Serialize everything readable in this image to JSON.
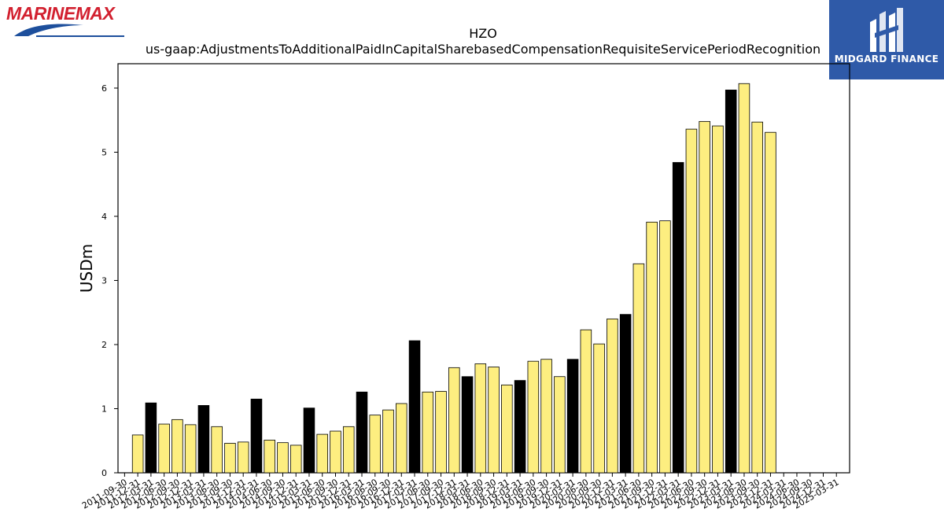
{
  "logos": {
    "left": {
      "text": "MARINEMAX",
      "icon": "marinemax-logo-icon"
    },
    "right": {
      "text": "MIDGARD FINANCE",
      "icon": "midgard-logo-icon",
      "background": "#2f5aa8"
    }
  },
  "chart_data": {
    "type": "bar",
    "title": "HZO",
    "subtitle": "us-gaap:AdjustmentsToAdditionalPaidInCapitalSharebasedCompensationRequisiteServicePeriodRecognition",
    "ylabel": "USDm",
    "xlabel": "",
    "ylim": [
      0,
      6.38
    ],
    "yticks": [
      0,
      1,
      2,
      3,
      4,
      5,
      6
    ],
    "grid": false,
    "colors": {
      "quarter": "#fdee80",
      "fiscal_year_end": "#000000",
      "edge": "#000000"
    },
    "categories": [
      "2011-09-30",
      "2011-12-31",
      "2012-03-31",
      "2012-06-30",
      "2012-09-30",
      "2012-12-31",
      "2013-03-31",
      "2013-06-30",
      "2013-09-30",
      "2013-12-31",
      "2014-03-31",
      "2014-06-30",
      "2014-09-30",
      "2014-12-31",
      "2015-03-31",
      "2015-06-30",
      "2015-09-30",
      "2015-12-31",
      "2016-03-31",
      "2016-06-30",
      "2016-09-30",
      "2016-12-31",
      "2017-03-31",
      "2017-06-30",
      "2017-09-30",
      "2017-12-31",
      "2018-03-31",
      "2018-06-30",
      "2018-09-30",
      "2018-12-31",
      "2019-03-31",
      "2019-06-30",
      "2019-09-30",
      "2019-12-31",
      "2020-03-31",
      "2020-06-30",
      "2020-09-30",
      "2020-12-31",
      "2021-03-31",
      "2021-06-30",
      "2021-09-30",
      "2021-12-31",
      "2022-03-31",
      "2022-06-30",
      "2022-09-30",
      "2022-12-31",
      "2023-03-31",
      "2023-06-30",
      "2023-09-30",
      "2023-12-31",
      "2024-03-31",
      "2024-06-30",
      "2024-09-30",
      "2024-12-31",
      "2025-03-31"
    ],
    "tick_labels": [
      "2011-09-30",
      "2011-12-31",
      "2012-03-31",
      "2012-06-30",
      "2012-09-30",
      "2012-12-31",
      "2013-03-31",
      "2013-06-30",
      "2013-09-30",
      "2013-12-31",
      "2014-03-31",
      "2014-06-30",
      "2014-09-30",
      "2014-12-31",
      "2015-03-31",
      "2015-06-30",
      "2015-09-30",
      "2015-12-31",
      "2016-03-31",
      "2016-06-30",
      "2016-09-30",
      "2016-12-31",
      "2017-03-31",
      "2017-06-30",
      "2017-09-30",
      "2017-12-31",
      "2018-03-31",
      "2018-06-30",
      "2018-09-30",
      "2018-12-31",
      "2019-03-31",
      "2019-06-30",
      "2019-09-30",
      "2019-12-31",
      "2020-03-31",
      "2020-06-30",
      "2020-09-30",
      "2020-12-31",
      "2021-03-31",
      "2021-06-30",
      "2021-09-30",
      "2021-12-31",
      "2022-03-31",
      "2022-06-30",
      "2022-09-30",
      "2022-12-31",
      "2023-03-31",
      "2023-06-30",
      "2023-09-30",
      "2023-12-31",
      "2024-03-31",
      "2024-06-30",
      "2024-09-30",
      "2024-12-31",
      "2025-03-31"
    ],
    "values": [
      null,
      0.59,
      1.09,
      0.76,
      0.83,
      0.75,
      1.05,
      0.72,
      0.46,
      0.48,
      1.15,
      0.51,
      0.47,
      0.43,
      1.01,
      0.6,
      0.65,
      0.72,
      1.26,
      0.9,
      0.98,
      1.08,
      2.06,
      1.26,
      1.27,
      1.64,
      1.5,
      1.7,
      1.65,
      1.37,
      1.44,
      1.74,
      1.77,
      1.5,
      1.77,
      2.23,
      2.01,
      2.4,
      2.47,
      3.26,
      3.91,
      3.93,
      4.84,
      5.36,
      5.48,
      5.41,
      5.97,
      6.07,
      5.47,
      5.31,
      null,
      null,
      null,
      null,
      null
    ],
    "fiscal_year_end": [
      false,
      false,
      true,
      false,
      false,
      false,
      true,
      false,
      false,
      false,
      true,
      false,
      false,
      false,
      true,
      false,
      false,
      false,
      true,
      false,
      false,
      false,
      true,
      false,
      false,
      false,
      true,
      false,
      false,
      false,
      true,
      false,
      false,
      false,
      true,
      false,
      false,
      false,
      true,
      false,
      false,
      false,
      true,
      false,
      false,
      false,
      true,
      false,
      false,
      false,
      true,
      false,
      false,
      false,
      true
    ]
  }
}
